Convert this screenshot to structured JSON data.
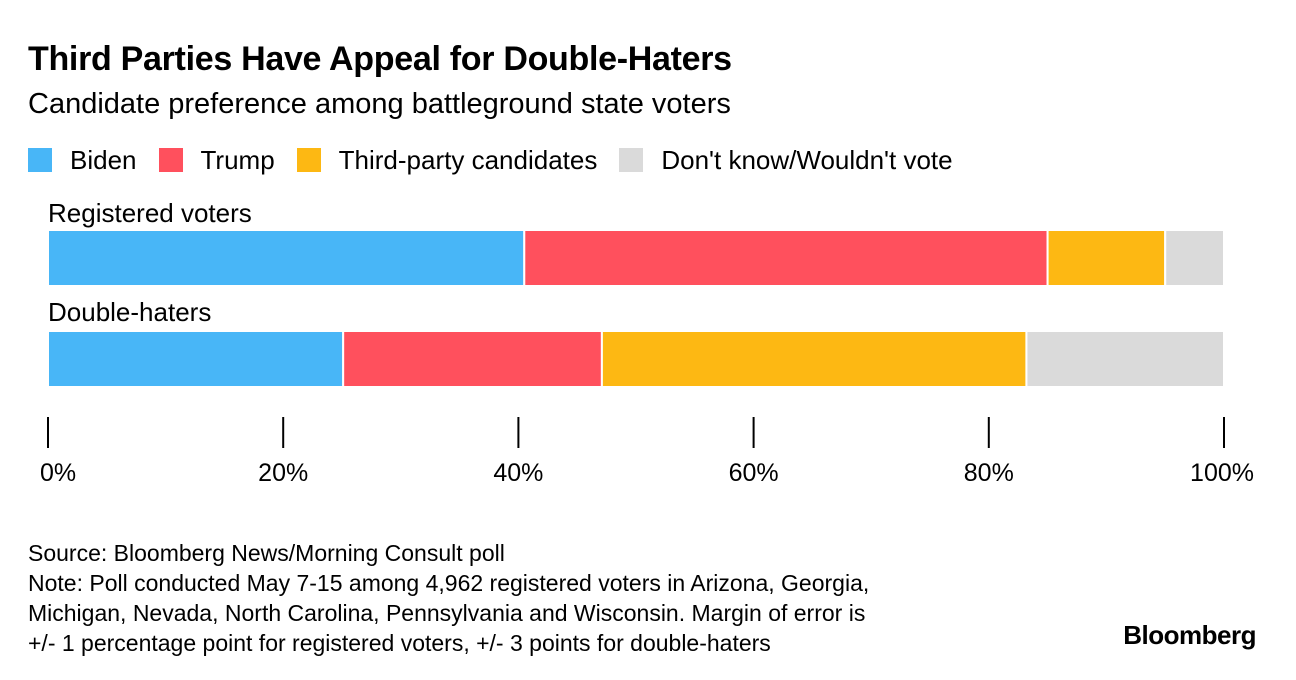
{
  "title": "Third Parties Have Appeal for Double-Haters",
  "subtitle": "Candidate preference among battleground state voters",
  "legend": [
    {
      "label": "Biden",
      "color": "#48b6f7"
    },
    {
      "label": "Trump",
      "color": "#ff505d"
    },
    {
      "label": "Third-party candidates",
      "color": "#fdb813"
    },
    {
      "label": "Don't know/Wouldn't vote",
      "color": "#dadada"
    }
  ],
  "chart_data": {
    "type": "bar",
    "orientation": "horizontal",
    "stacked": true,
    "categories": [
      "Registered voters",
      "Double-haters"
    ],
    "series": [
      {
        "name": "Biden",
        "color": "#48b6f7",
        "values": [
          40.5,
          25.1
        ]
      },
      {
        "name": "Trump",
        "color": "#ff505d",
        "values": [
          44.5,
          22.0
        ]
      },
      {
        "name": "Third-party candidates",
        "color": "#fdb813",
        "values": [
          10.0,
          36.1
        ]
      },
      {
        "name": "Don't know/Wouldn't vote",
        "color": "#dadada",
        "values": [
          5.0,
          16.8
        ]
      }
    ],
    "xlim": [
      0,
      100
    ],
    "xticks": [
      0,
      20,
      40,
      60,
      80,
      100
    ],
    "xtick_labels": [
      "0%",
      "20%",
      "40%",
      "60%",
      "80%",
      "100%"
    ],
    "xlabel": "",
    "ylabel": ""
  },
  "footer": {
    "source": "Source: Bloomberg News/Morning Consult poll",
    "note_lines": [
      "Note: Poll conducted May 7-15 among 4,962 registered voters in Arizona, Georgia,",
      "Michigan, Nevada, North Carolina, Pennsylvania and Wisconsin. Margin of error is",
      "+/- 1 percentage point for registered voters, +/- 3 points for double-haters"
    ]
  },
  "logo": "Bloomberg"
}
